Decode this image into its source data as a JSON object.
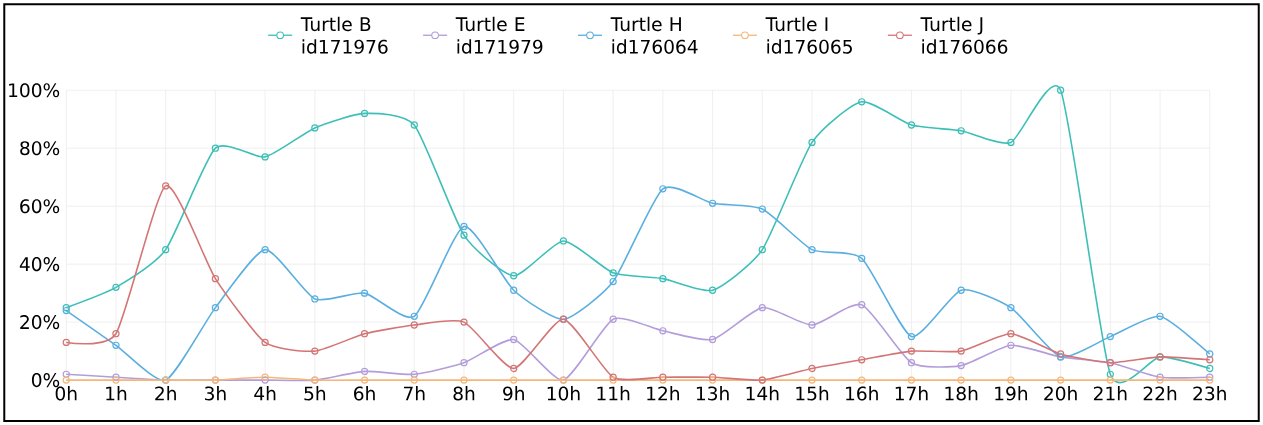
{
  "chart_data": {
    "type": "line",
    "categories": [
      "0h",
      "1h",
      "2h",
      "3h",
      "4h",
      "5h",
      "6h",
      "7h",
      "8h",
      "9h",
      "10h",
      "11h",
      "12h",
      "13h",
      "14h",
      "15h",
      "16h",
      "17h",
      "18h",
      "19h",
      "20h",
      "21h",
      "22h",
      "23h"
    ],
    "series": [
      {
        "name": "Turtle B id171976",
        "color": "#3dbfb8",
        "values": [
          25,
          32,
          45,
          80,
          77,
          87,
          92,
          88,
          50,
          36,
          48,
          37,
          35,
          31,
          45,
          82,
          96,
          88,
          86,
          82,
          100,
          2,
          8,
          4
        ]
      },
      {
        "name": "Turtle E id171979",
        "color": "#b39ddb",
        "values": [
          2,
          1,
          0,
          0,
          0,
          0,
          3,
          2,
          6,
          14,
          0,
          21,
          17,
          14,
          25,
          19,
          26,
          6,
          5,
          12,
          8,
          6,
          1,
          1
        ]
      },
      {
        "name": "Turtle H id176064",
        "color": "#5aafe0",
        "values": [
          24,
          12,
          0,
          25,
          45,
          28,
          30,
          22,
          53,
          31,
          21,
          34,
          66,
          61,
          59,
          45,
          42,
          15,
          31,
          25,
          8,
          15,
          22,
          9
        ]
      },
      {
        "name": "Turtle I id176065",
        "color": "#f5b87a",
        "values": [
          0,
          0,
          0,
          0,
          1,
          0,
          0,
          0,
          0,
          0,
          0,
          0,
          0,
          0,
          0,
          0,
          0,
          0,
          0,
          0,
          0,
          0,
          0,
          0
        ]
      },
      {
        "name": "Turtle J id176066",
        "color": "#d47575",
        "values": [
          13,
          16,
          67,
          35,
          13,
          10,
          16,
          19,
          20,
          4,
          21,
          1,
          1,
          1,
          0,
          4,
          7,
          10,
          10,
          16,
          9,
          6,
          8,
          7
        ]
      }
    ],
    "ylim": [
      0,
      100
    ],
    "yticks": [
      {
        "value": 0,
        "label": "0%"
      },
      {
        "value": 20,
        "label": "20%"
      },
      {
        "value": 40,
        "label": "40%"
      },
      {
        "value": 60,
        "label": "60%"
      },
      {
        "value": 80,
        "label": "80%"
      },
      {
        "value": 100,
        "label": "100%"
      }
    ],
    "grid": true,
    "legend": "top",
    "marker": "circle",
    "line_style": "solid"
  }
}
